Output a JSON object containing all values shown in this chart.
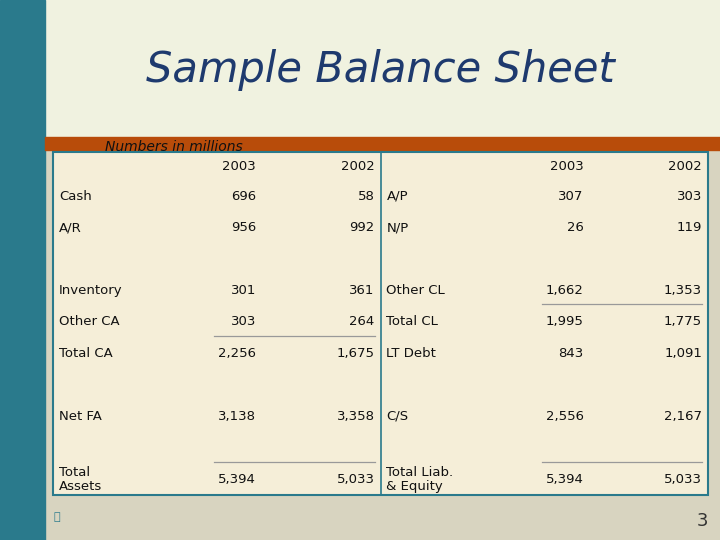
{
  "title": "Sample Balance Sheet",
  "subtitle": "Numbers in millions",
  "title_color": "#1e3a6e",
  "bg_top_color": "#f0f2e0",
  "bg_bottom_color": "#d8d4c0",
  "left_bar_color": "#2a7a8c",
  "orange_bar_color": "#b84c0a",
  "table_bg": "#f5eed8",
  "table_border_color": "#2a7a8c",
  "table_inner_line_color": "#999999",
  "page_number": "3",
  "left_table": {
    "headers": [
      "",
      "2003",
      "2002"
    ],
    "rows": [
      [
        "Cash",
        "696",
        "58"
      ],
      [
        "A/R",
        "956",
        "992"
      ],
      [
        "",
        "",
        ""
      ],
      [
        "Inventory",
        "301",
        "361"
      ],
      [
        "Other CA",
        "303",
        "264"
      ],
      [
        "Total CA",
        "2,256",
        "1,675"
      ],
      [
        "",
        "",
        ""
      ],
      [
        "Net FA",
        "3,138",
        "3,358"
      ],
      [
        "",
        "",
        ""
      ],
      [
        "Total\nAssets",
        "5,394",
        "5,033"
      ]
    ],
    "underline_before_rows": [
      5,
      9
    ]
  },
  "right_table": {
    "headers": [
      "",
      "2003",
      "2002"
    ],
    "rows": [
      [
        "A/P",
        "307",
        "303"
      ],
      [
        "N/P",
        "26",
        "119"
      ],
      [
        "",
        "",
        ""
      ],
      [
        "Other CL",
        "1,662",
        "1,353"
      ],
      [
        "Total CL",
        "1,995",
        "1,775"
      ],
      [
        "LT Debt",
        "843",
        "1,091"
      ],
      [
        "",
        "",
        ""
      ],
      [
        "C/S",
        "2,556",
        "2,167"
      ],
      [
        "",
        "",
        ""
      ],
      [
        "Total Liab.\n& Equity",
        "5,394",
        "5,033"
      ]
    ],
    "underline_before_rows": [
      4,
      9
    ]
  }
}
